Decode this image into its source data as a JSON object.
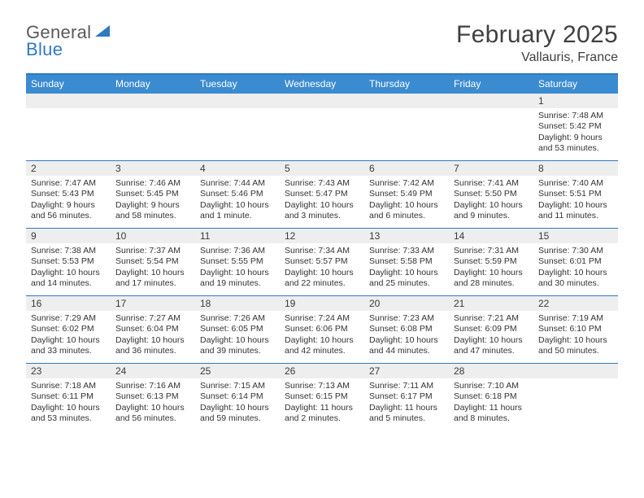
{
  "logo": {
    "line1": "General",
    "line2": "Blue"
  },
  "title": "February 2025",
  "location": "Vallauris, France",
  "colors": {
    "brand_blue": "#3b8bd0",
    "rule_blue": "#2f79c2",
    "header_gray": "#eeeeee",
    "text": "#333333",
    "title_text": "#404040"
  },
  "weekdays": [
    "Sunday",
    "Monday",
    "Tuesday",
    "Wednesday",
    "Thursday",
    "Friday",
    "Saturday"
  ],
  "grid": [
    [
      {
        "n": "",
        "lines": []
      },
      {
        "n": "",
        "lines": []
      },
      {
        "n": "",
        "lines": []
      },
      {
        "n": "",
        "lines": []
      },
      {
        "n": "",
        "lines": []
      },
      {
        "n": "",
        "lines": []
      },
      {
        "n": "1",
        "lines": [
          "Sunrise: 7:48 AM",
          "Sunset: 5:42 PM",
          "Daylight: 9 hours and 53 minutes."
        ]
      }
    ],
    [
      {
        "n": "2",
        "lines": [
          "Sunrise: 7:47 AM",
          "Sunset: 5:43 PM",
          "Daylight: 9 hours and 56 minutes."
        ]
      },
      {
        "n": "3",
        "lines": [
          "Sunrise: 7:46 AM",
          "Sunset: 5:45 PM",
          "Daylight: 9 hours and 58 minutes."
        ]
      },
      {
        "n": "4",
        "lines": [
          "Sunrise: 7:44 AM",
          "Sunset: 5:46 PM",
          "Daylight: 10 hours and 1 minute."
        ]
      },
      {
        "n": "5",
        "lines": [
          "Sunrise: 7:43 AM",
          "Sunset: 5:47 PM",
          "Daylight: 10 hours and 3 minutes."
        ]
      },
      {
        "n": "6",
        "lines": [
          "Sunrise: 7:42 AM",
          "Sunset: 5:49 PM",
          "Daylight: 10 hours and 6 minutes."
        ]
      },
      {
        "n": "7",
        "lines": [
          "Sunrise: 7:41 AM",
          "Sunset: 5:50 PM",
          "Daylight: 10 hours and 9 minutes."
        ]
      },
      {
        "n": "8",
        "lines": [
          "Sunrise: 7:40 AM",
          "Sunset: 5:51 PM",
          "Daylight: 10 hours and 11 minutes."
        ]
      }
    ],
    [
      {
        "n": "9",
        "lines": [
          "Sunrise: 7:38 AM",
          "Sunset: 5:53 PM",
          "Daylight: 10 hours and 14 minutes."
        ]
      },
      {
        "n": "10",
        "lines": [
          "Sunrise: 7:37 AM",
          "Sunset: 5:54 PM",
          "Daylight: 10 hours and 17 minutes."
        ]
      },
      {
        "n": "11",
        "lines": [
          "Sunrise: 7:36 AM",
          "Sunset: 5:55 PM",
          "Daylight: 10 hours and 19 minutes."
        ]
      },
      {
        "n": "12",
        "lines": [
          "Sunrise: 7:34 AM",
          "Sunset: 5:57 PM",
          "Daylight: 10 hours and 22 minutes."
        ]
      },
      {
        "n": "13",
        "lines": [
          "Sunrise: 7:33 AM",
          "Sunset: 5:58 PM",
          "Daylight: 10 hours and 25 minutes."
        ]
      },
      {
        "n": "14",
        "lines": [
          "Sunrise: 7:31 AM",
          "Sunset: 5:59 PM",
          "Daylight: 10 hours and 28 minutes."
        ]
      },
      {
        "n": "15",
        "lines": [
          "Sunrise: 7:30 AM",
          "Sunset: 6:01 PM",
          "Daylight: 10 hours and 30 minutes."
        ]
      }
    ],
    [
      {
        "n": "16",
        "lines": [
          "Sunrise: 7:29 AM",
          "Sunset: 6:02 PM",
          "Daylight: 10 hours and 33 minutes."
        ]
      },
      {
        "n": "17",
        "lines": [
          "Sunrise: 7:27 AM",
          "Sunset: 6:04 PM",
          "Daylight: 10 hours and 36 minutes."
        ]
      },
      {
        "n": "18",
        "lines": [
          "Sunrise: 7:26 AM",
          "Sunset: 6:05 PM",
          "Daylight: 10 hours and 39 minutes."
        ]
      },
      {
        "n": "19",
        "lines": [
          "Sunrise: 7:24 AM",
          "Sunset: 6:06 PM",
          "Daylight: 10 hours and 42 minutes."
        ]
      },
      {
        "n": "20",
        "lines": [
          "Sunrise: 7:23 AM",
          "Sunset: 6:08 PM",
          "Daylight: 10 hours and 44 minutes."
        ]
      },
      {
        "n": "21",
        "lines": [
          "Sunrise: 7:21 AM",
          "Sunset: 6:09 PM",
          "Daylight: 10 hours and 47 minutes."
        ]
      },
      {
        "n": "22",
        "lines": [
          "Sunrise: 7:19 AM",
          "Sunset: 6:10 PM",
          "Daylight: 10 hours and 50 minutes."
        ]
      }
    ],
    [
      {
        "n": "23",
        "lines": [
          "Sunrise: 7:18 AM",
          "Sunset: 6:11 PM",
          "Daylight: 10 hours and 53 minutes."
        ]
      },
      {
        "n": "24",
        "lines": [
          "Sunrise: 7:16 AM",
          "Sunset: 6:13 PM",
          "Daylight: 10 hours and 56 minutes."
        ]
      },
      {
        "n": "25",
        "lines": [
          "Sunrise: 7:15 AM",
          "Sunset: 6:14 PM",
          "Daylight: 10 hours and 59 minutes."
        ]
      },
      {
        "n": "26",
        "lines": [
          "Sunrise: 7:13 AM",
          "Sunset: 6:15 PM",
          "Daylight: 11 hours and 2 minutes."
        ]
      },
      {
        "n": "27",
        "lines": [
          "Sunrise: 7:11 AM",
          "Sunset: 6:17 PM",
          "Daylight: 11 hours and 5 minutes."
        ]
      },
      {
        "n": "28",
        "lines": [
          "Sunrise: 7:10 AM",
          "Sunset: 6:18 PM",
          "Daylight: 11 hours and 8 minutes."
        ]
      },
      {
        "n": "",
        "lines": []
      }
    ]
  ]
}
